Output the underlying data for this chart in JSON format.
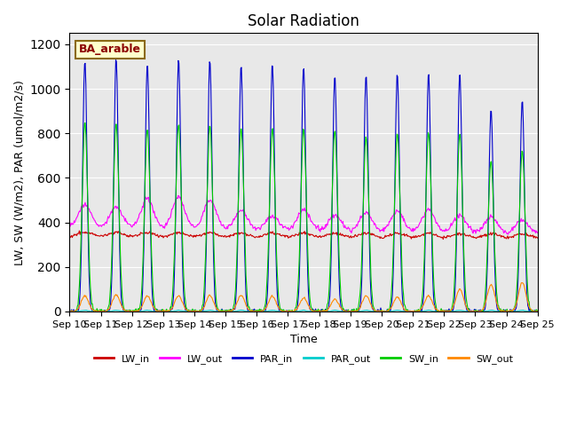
{
  "title": "Solar Radiation",
  "xlabel": "Time",
  "ylabel": "LW, SW (W/m2), PAR (umol/m2/s)",
  "annotation": "BA_arable",
  "ylim": [
    0,
    1250
  ],
  "yticks": [
    0,
    200,
    400,
    600,
    800,
    1000,
    1200
  ],
  "n_days": 15,
  "bg_color": "#e8e8e8",
  "series_colors": {
    "LW_in": "#cc0000",
    "LW_out": "#ff00ff",
    "PAR_in": "#0000cc",
    "PAR_out": "#00cccc",
    "SW_in": "#00cc00",
    "SW_out": "#ff8800"
  },
  "xtick_labels": [
    "Sep 10",
    "Sep 11",
    "Sep 12",
    "Sep 13",
    "Sep 14",
    "Sep 15",
    "Sep 16",
    "Sep 17",
    "Sep 18",
    "Sep 19",
    "Sep 20",
    "Sep 21",
    "Sep 22",
    "Sep 23",
    "Sep 24",
    "Sep 25"
  ],
  "n_points_per_day": 48,
  "par_in_peaks": [
    1130,
    1135,
    1110,
    1130,
    1130,
    1110,
    1110,
    1100,
    1060,
    1065,
    1070,
    1070,
    1070,
    910,
    950
  ],
  "sw_in_peaks": [
    850,
    845,
    820,
    840,
    840,
    825,
    825,
    820,
    815,
    790,
    800,
    805,
    800,
    680,
    720
  ],
  "sw_out_peaks": [
    70,
    75,
    70,
    70,
    72,
    72,
    68,
    60,
    55,
    70,
    65,
    70,
    100,
    120,
    130
  ],
  "lw_out_peak_extra": [
    100,
    90,
    130,
    140,
    130,
    85,
    60,
    90,
    70,
    80,
    90,
    100,
    80,
    70,
    60
  ]
}
